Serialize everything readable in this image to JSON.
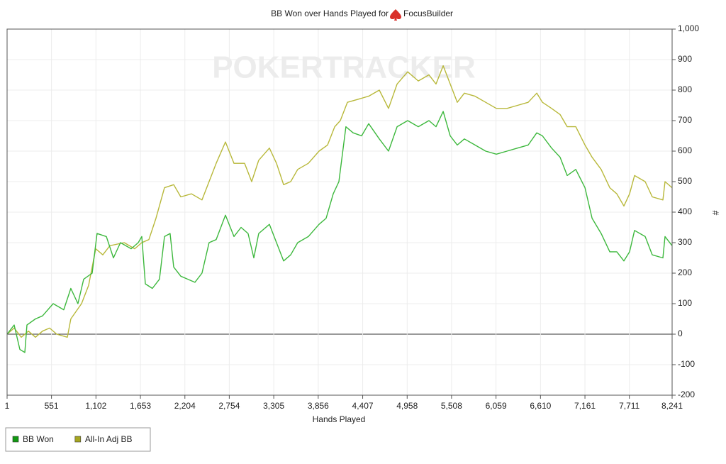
{
  "chart_data": {
    "type": "line",
    "title": "BB Won over Hands Played for",
    "player": "FocusBuilder",
    "watermark": "POKERTRACKER",
    "x_label": "Hands Played",
    "y_label": "#",
    "xlim": [
      1,
      8241
    ],
    "ylim": [
      -200,
      1000
    ],
    "xticks": [
      1,
      551,
      {
        "value": 1102,
        "label": "1,102"
      },
      {
        "value": 1653,
        "label": "1,653"
      },
      {
        "value": 2204,
        "label": "2,204"
      },
      {
        "value": 2754,
        "label": "2,754"
      },
      {
        "value": 3305,
        "label": "3,305"
      },
      {
        "value": 3856,
        "label": "3,856"
      },
      {
        "value": 4407,
        "label": "4,407"
      },
      {
        "value": 4958,
        "label": "4,958"
      },
      {
        "value": 5508,
        "label": "5,508"
      },
      {
        "value": 6059,
        "label": "6,059"
      },
      {
        "value": 6610,
        "label": "6,610"
      },
      {
        "value": 7161,
        "label": "7,161"
      },
      {
        "value": 7711,
        "label": "7,711"
      },
      {
        "value": 8241,
        "label": "8,241"
      }
    ],
    "yticks": [
      -200,
      -100,
      0,
      100,
      200,
      300,
      400,
      500,
      600,
      700,
      800,
      900,
      {
        "value": 1000,
        "label": "1,000"
      }
    ],
    "grid": true,
    "legend": "bottom-left",
    "series": [
      {
        "name": "BB Won",
        "color": "#3db83d",
        "legend_color": "#119911",
        "x": [
          1,
          89,
          159,
          221,
          247,
          352,
          440,
          572,
          703,
          791,
          879,
          950,
          1055,
          1116,
          1231,
          1319,
          1406,
          1538,
          1626,
          1670,
          1714,
          1801,
          1889,
          1951,
          2021,
          2065,
          2153,
          2241,
          2328,
          2416,
          2504,
          2592,
          2707,
          2812,
          2900,
          2987,
          3058,
          3119,
          3251,
          3339,
          3427,
          3515,
          3602,
          3734,
          3866,
          3954,
          4042,
          4112,
          4199,
          4288,
          4393,
          4481,
          4613,
          4727,
          4833,
          4964,
          5096,
          5228,
          5316,
          5404,
          5491,
          5579,
          5667,
          5799,
          5931,
          6063,
          6195,
          6326,
          6458,
          6564,
          6634,
          6748,
          6853,
          6941,
          7047,
          7161,
          7249,
          7362,
          7469,
          7556,
          7644,
          7714,
          7775,
          7907,
          7995,
          8127,
          8153,
          8241
        ],
        "values": [
          0,
          30,
          -50,
          -60,
          30,
          50,
          60,
          100,
          80,
          150,
          100,
          180,
          200,
          330,
          320,
          250,
          300,
          280,
          300,
          320,
          165,
          150,
          180,
          320,
          330,
          220,
          190,
          180,
          170,
          200,
          300,
          310,
          390,
          320,
          350,
          330,
          250,
          330,
          360,
          300,
          240,
          260,
          300,
          320,
          360,
          380,
          460,
          500,
          680,
          660,
          650,
          690,
          640,
          600,
          680,
          700,
          680,
          700,
          680,
          730,
          650,
          620,
          640,
          620,
          600,
          590,
          600,
          610,
          620,
          660,
          650,
          610,
          580,
          520,
          540,
          480,
          380,
          330,
          270,
          270,
          240,
          270,
          340,
          320,
          260,
          250,
          320,
          290
        ]
      },
      {
        "name": "All-In Adj BB",
        "color": "#b8b83a",
        "legend_color": "#a6a620",
        "x": [
          1,
          89,
          177,
          265,
          352,
          440,
          528,
          616,
          748,
          791,
          923,
          1011,
          1099,
          1187,
          1275,
          1451,
          1582,
          1670,
          1758,
          1846,
          1951,
          2065,
          2153,
          2285,
          2416,
          2504,
          2592,
          2707,
          2812,
          2944,
          3032,
          3119,
          3251,
          3339,
          3427,
          3515,
          3602,
          3734,
          3866,
          3972,
          4060,
          4130,
          4218,
          4350,
          4481,
          4613,
          4727,
          4833,
          4964,
          5096,
          5228,
          5316,
          5404,
          5491,
          5579,
          5667,
          5799,
          5931,
          6063,
          6195,
          6326,
          6458,
          6564,
          6634,
          6748,
          6853,
          6941,
          7047,
          7161,
          7249,
          7362,
          7469,
          7556,
          7644,
          7714,
          7775,
          7907,
          7995,
          8127,
          8153,
          8241
        ],
        "values": [
          0,
          20,
          -10,
          10,
          -10,
          10,
          20,
          0,
          -10,
          50,
          100,
          160,
          280,
          260,
          290,
          300,
          280,
          300,
          310,
          380,
          480,
          490,
          450,
          460,
          440,
          500,
          560,
          630,
          560,
          560,
          500,
          570,
          610,
          560,
          490,
          500,
          540,
          560,
          600,
          620,
          680,
          700,
          760,
          770,
          780,
          800,
          740,
          820,
          860,
          830,
          850,
          820,
          880,
          820,
          760,
          790,
          780,
          760,
          740,
          740,
          750,
          760,
          790,
          760,
          740,
          720,
          680,
          680,
          620,
          580,
          540,
          480,
          460,
          420,
          460,
          520,
          500,
          450,
          440,
          500,
          480
        ]
      }
    ]
  }
}
